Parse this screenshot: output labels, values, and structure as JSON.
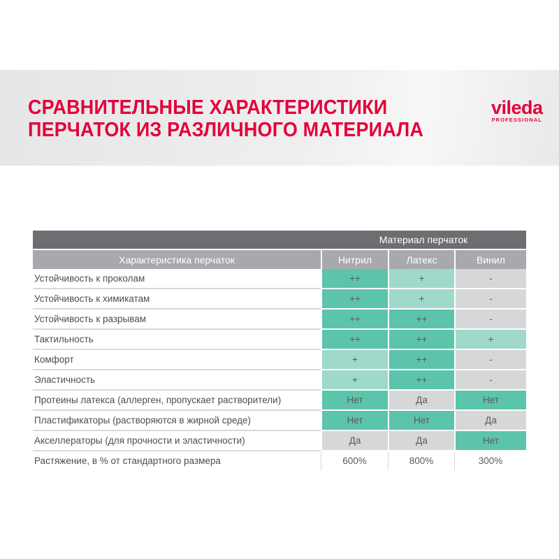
{
  "header": {
    "title_line1": "СРАВНИТЕЛЬНЫЕ ХАРАКТЕРИСТИКИ",
    "title_line2": "ПЕРЧАТОК ИЗ РАЗЛИЧНОГО МАТЕРИАЛА",
    "logo_brand": "vileda",
    "logo_sub": "PROFESSIONAL"
  },
  "table": {
    "group_header": "Материал перчаток",
    "columns": [
      "Характеристика перчаток",
      "Нитрил",
      "Латекс",
      "Винил"
    ],
    "rows": [
      {
        "label": "Устойчивость к проколам",
        "values": [
          "++",
          "+",
          "-"
        ],
        "shades": [
          "dark",
          "light",
          "gray"
        ]
      },
      {
        "label": "Устойчивость к химикатам",
        "values": [
          "++",
          "+",
          "-"
        ],
        "shades": [
          "dark",
          "light",
          "gray"
        ]
      },
      {
        "label": "Устойчивость к разрывам",
        "values": [
          "++",
          "++",
          "-"
        ],
        "shades": [
          "dark",
          "dark",
          "gray"
        ]
      },
      {
        "label": "Тактильность",
        "values": [
          "++",
          "++",
          "+"
        ],
        "shades": [
          "dark",
          "dark",
          "light"
        ]
      },
      {
        "label": "Комфорт",
        "values": [
          "+",
          "++",
          "-"
        ],
        "shades": [
          "light",
          "dark",
          "gray"
        ]
      },
      {
        "label": "Эластичность",
        "values": [
          "+",
          "++",
          "-"
        ],
        "shades": [
          "light",
          "dark",
          "gray"
        ]
      },
      {
        "label": "Протеины латекса (аллерген, пропускает растворители)",
        "values": [
          "Нет",
          "Да",
          "Нет"
        ],
        "shades": [
          "dark",
          "gray",
          "dark"
        ]
      },
      {
        "label": "Пластификаторы (растворяются в жирной среде)",
        "values": [
          "Нет",
          "Нет",
          "Да"
        ],
        "shades": [
          "dark",
          "dark",
          "gray"
        ]
      },
      {
        "label": "Акселлераторы (для прочности и эластичности)",
        "values": [
          "Да",
          "Да",
          "Нет"
        ],
        "shades": [
          "gray",
          "gray",
          "dark"
        ]
      },
      {
        "label": "Растяжение, в % от стандартного размера",
        "values": [
          "600%",
          "800%",
          "300%"
        ],
        "shades": [
          "none",
          "none",
          "none"
        ]
      }
    ],
    "colors": {
      "dark": "#5cc4ab",
      "light": "#9fd9ca",
      "gray": "#d6d7d9",
      "header_dark": "#6d6e71",
      "header_light": "#a7a9ac",
      "title_red": "#e4003a"
    }
  }
}
